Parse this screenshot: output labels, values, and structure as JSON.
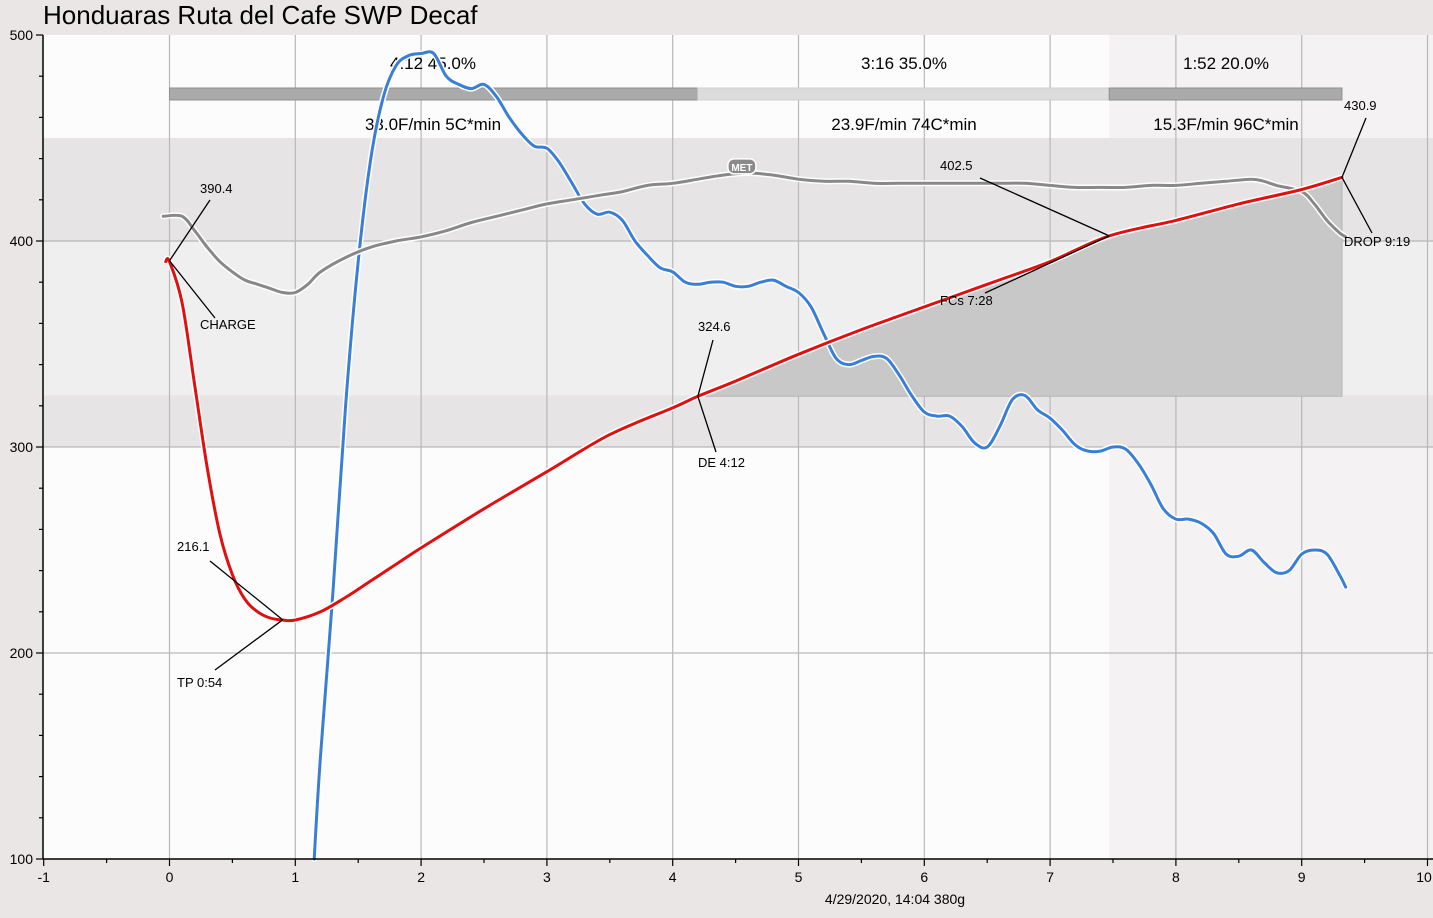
{
  "chart_data": {
    "type": "line",
    "title": "Honduaras Ruta del Cafe SWP Decaf",
    "footer": "4/29/2020, 14:04   380g",
    "xlim": [
      -1,
      10
    ],
    "ylim": [
      100,
      500
    ],
    "x_ticks": [
      "-1",
      "0",
      "1",
      "2",
      "3",
      "4",
      "5",
      "6",
      "7",
      "8",
      "9",
      "10"
    ],
    "y_ticks": [
      "100",
      "200",
      "300",
      "400",
      "500"
    ],
    "grid": true,
    "colors": {
      "bt": "#e01010",
      "et": "#888888",
      "ror": "#3a7fd5"
    },
    "series": [
      {
        "key": "ror",
        "values": [
          [
            1.15,
            100
          ],
          [
            1.2,
            150
          ],
          [
            1.3,
            230
          ],
          [
            1.4,
            320
          ],
          [
            1.5,
            390
          ],
          [
            1.6,
            440
          ],
          [
            1.7,
            470
          ],
          [
            1.8,
            485
          ],
          [
            1.9,
            490
          ],
          [
            2.0,
            491
          ],
          [
            2.1,
            491
          ],
          [
            2.2,
            480
          ],
          [
            2.3,
            476
          ],
          [
            2.4,
            474
          ],
          [
            2.5,
            476
          ],
          [
            2.6,
            470
          ],
          [
            2.7,
            460
          ],
          [
            2.8,
            452
          ],
          [
            2.9,
            446
          ],
          [
            3.0,
            445
          ],
          [
            3.1,
            438
          ],
          [
            3.2,
            428
          ],
          [
            3.3,
            418
          ],
          [
            3.4,
            413
          ],
          [
            3.5,
            414
          ],
          [
            3.6,
            410
          ],
          [
            3.7,
            400
          ],
          [
            3.8,
            393
          ],
          [
            3.9,
            387
          ],
          [
            4.0,
            385
          ],
          [
            4.1,
            380
          ],
          [
            4.2,
            379
          ],
          [
            4.3,
            380
          ],
          [
            4.4,
            380
          ],
          [
            4.5,
            378
          ],
          [
            4.6,
            378
          ],
          [
            4.7,
            380
          ],
          [
            4.8,
            381
          ],
          [
            4.9,
            378
          ],
          [
            5.0,
            375
          ],
          [
            5.1,
            368
          ],
          [
            5.2,
            355
          ],
          [
            5.3,
            343
          ],
          [
            5.4,
            340
          ],
          [
            5.5,
            342
          ],
          [
            5.6,
            344
          ],
          [
            5.7,
            343
          ],
          [
            5.8,
            335
          ],
          [
            5.9,
            325
          ],
          [
            6.0,
            317
          ],
          [
            6.1,
            315
          ],
          [
            6.2,
            315
          ],
          [
            6.3,
            310
          ],
          [
            6.4,
            302
          ],
          [
            6.5,
            300
          ],
          [
            6.6,
            310
          ],
          [
            6.7,
            323
          ],
          [
            6.8,
            325
          ],
          [
            6.9,
            318
          ],
          [
            7.0,
            314
          ],
          [
            7.1,
            308
          ],
          [
            7.2,
            301
          ],
          [
            7.3,
            298
          ],
          [
            7.4,
            298
          ],
          [
            7.5,
            300
          ],
          [
            7.6,
            299
          ],
          [
            7.7,
            292
          ],
          [
            7.8,
            282
          ],
          [
            7.9,
            270
          ],
          [
            8.0,
            265
          ],
          [
            8.1,
            265
          ],
          [
            8.2,
            263
          ],
          [
            8.3,
            258
          ],
          [
            8.4,
            248
          ],
          [
            8.5,
            247
          ],
          [
            8.6,
            250
          ],
          [
            8.7,
            244
          ],
          [
            8.8,
            239
          ],
          [
            8.9,
            240
          ],
          [
            9.0,
            248
          ],
          [
            9.1,
            250
          ],
          [
            9.2,
            248
          ],
          [
            9.3,
            238
          ],
          [
            9.35,
            232
          ]
        ]
      },
      {
        "key": "et",
        "values": [
          [
            -0.05,
            412
          ],
          [
            0.1,
            412
          ],
          [
            0.2,
            405
          ],
          [
            0.3,
            397
          ],
          [
            0.4,
            390
          ],
          [
            0.5,
            385
          ],
          [
            0.6,
            381
          ],
          [
            0.7,
            379
          ],
          [
            0.8,
            377
          ],
          [
            0.9,
            375
          ],
          [
            1.0,
            375
          ],
          [
            1.1,
            379
          ],
          [
            1.2,
            385
          ],
          [
            1.4,
            392
          ],
          [
            1.6,
            397
          ],
          [
            1.8,
            400
          ],
          [
            2.0,
            402
          ],
          [
            2.2,
            405
          ],
          [
            2.4,
            409
          ],
          [
            2.6,
            412
          ],
          [
            2.8,
            415
          ],
          [
            3.0,
            418
          ],
          [
            3.2,
            420
          ],
          [
            3.4,
            422
          ],
          [
            3.6,
            424
          ],
          [
            3.8,
            427
          ],
          [
            4.0,
            428
          ],
          [
            4.2,
            430
          ],
          [
            4.4,
            432
          ],
          [
            4.6,
            433
          ],
          [
            4.8,
            432
          ],
          [
            5.0,
            430
          ],
          [
            5.2,
            429
          ],
          [
            5.4,
            429
          ],
          [
            5.6,
            428
          ],
          [
            5.8,
            428
          ],
          [
            6.0,
            428
          ],
          [
            6.2,
            428
          ],
          [
            6.4,
            428
          ],
          [
            6.6,
            428
          ],
          [
            6.8,
            428
          ],
          [
            7.0,
            427
          ],
          [
            7.2,
            426
          ],
          [
            7.4,
            426
          ],
          [
            7.6,
            426
          ],
          [
            7.8,
            427
          ],
          [
            8.0,
            427
          ],
          [
            8.2,
            428
          ],
          [
            8.4,
            429
          ],
          [
            8.6,
            430
          ],
          [
            8.7,
            429
          ],
          [
            8.8,
            427
          ],
          [
            9.0,
            424
          ],
          [
            9.1,
            418
          ],
          [
            9.2,
            410
          ],
          [
            9.3,
            404
          ],
          [
            9.35,
            402
          ]
        ]
      },
      {
        "key": "bt",
        "values": [
          [
            -0.03,
            390
          ],
          [
            0.0,
            390
          ],
          [
            0.1,
            370
          ],
          [
            0.2,
            330
          ],
          [
            0.3,
            290
          ],
          [
            0.4,
            258
          ],
          [
            0.5,
            238
          ],
          [
            0.6,
            226
          ],
          [
            0.7,
            220
          ],
          [
            0.8,
            217
          ],
          [
            0.9,
            216
          ],
          [
            1.0,
            216
          ],
          [
            1.2,
            220
          ],
          [
            1.4,
            227
          ],
          [
            1.6,
            235
          ],
          [
            1.8,
            243
          ],
          [
            2.0,
            251
          ],
          [
            2.5,
            270
          ],
          [
            3.0,
            288
          ],
          [
            3.5,
            306
          ],
          [
            4.0,
            319
          ],
          [
            4.2,
            324.6
          ],
          [
            4.5,
            332
          ],
          [
            5.0,
            345
          ],
          [
            5.5,
            357
          ],
          [
            6.0,
            368
          ],
          [
            6.5,
            379
          ],
          [
            7.0,
            390
          ],
          [
            7.47,
            402.5
          ],
          [
            8.0,
            410
          ],
          [
            8.5,
            418
          ],
          [
            9.0,
            425
          ],
          [
            9.32,
            430.9
          ]
        ]
      }
    ],
    "events": [
      {
        "id": "charge",
        "x": 0.0,
        "y": 390.4,
        "value_label": "390.4",
        "name_label": "CHARGE"
      },
      {
        "id": "tp",
        "x": 0.9,
        "y": 216.1,
        "value_label": "216.1",
        "name_label": "TP 0:54"
      },
      {
        "id": "de",
        "x": 4.2,
        "y": 324.6,
        "value_label": "324.6",
        "name_label": "DE 4:12"
      },
      {
        "id": "fcs",
        "x": 7.47,
        "y": 402.5,
        "value_label": "402.5",
        "name_label": "FCs 7:28"
      },
      {
        "id": "drop",
        "x": 9.32,
        "y": 430.9,
        "value_label": "430.9",
        "name_label": "DROP 9:19"
      }
    ],
    "met_marker": {
      "label": "MET",
      "x": 4.55,
      "y": 436
    },
    "phases": [
      {
        "time_pct": "4:12  45.0%",
        "rate": "33.0F/min  5C*min",
        "x0": 0.0,
        "x1": 4.2,
        "shade": "dark"
      },
      {
        "time_pct": "3:16  35.0%",
        "rate": "23.9F/min  74C*min",
        "x0": 4.2,
        "x1": 7.47,
        "shade": "light"
      },
      {
        "time_pct": "1:52  20.0%",
        "rate": "15.3F/min  96C*min",
        "x0": 7.47,
        "x1": 9.32,
        "shade": "dark"
      }
    ]
  }
}
